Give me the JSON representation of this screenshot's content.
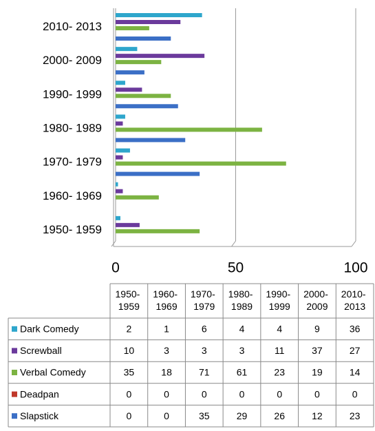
{
  "chart_data": {
    "type": "bar",
    "orientation": "horizontal",
    "categories": [
      "1950- 1959",
      "1960- 1969",
      "1970- 1979",
      "1980- 1989",
      "1990- 1999",
      "2000- 2009",
      "2010- 2013"
    ],
    "series": [
      {
        "name": "Dark Comedy",
        "color": "#2ea6cc",
        "values": [
          2,
          1,
          6,
          4,
          4,
          9,
          36
        ]
      },
      {
        "name": "Screwball",
        "color": "#6b3a9c",
        "values": [
          10,
          3,
          3,
          3,
          11,
          37,
          27
        ]
      },
      {
        "name": "Verbal Comedy",
        "color": "#7cb342",
        "values": [
          35,
          18,
          71,
          61,
          23,
          19,
          14
        ]
      },
      {
        "name": "Deadpan",
        "color": "#c0392b",
        "values": [
          0,
          0,
          0,
          0,
          0,
          0,
          0
        ]
      },
      {
        "name": "Slapstick",
        "color": "#3b6fc6",
        "values": [
          0,
          0,
          35,
          29,
          26,
          12,
          23
        ]
      }
    ],
    "xlim": [
      0,
      100
    ],
    "xticks": [
      0,
      50,
      100
    ],
    "grid": true,
    "data_table": true
  }
}
